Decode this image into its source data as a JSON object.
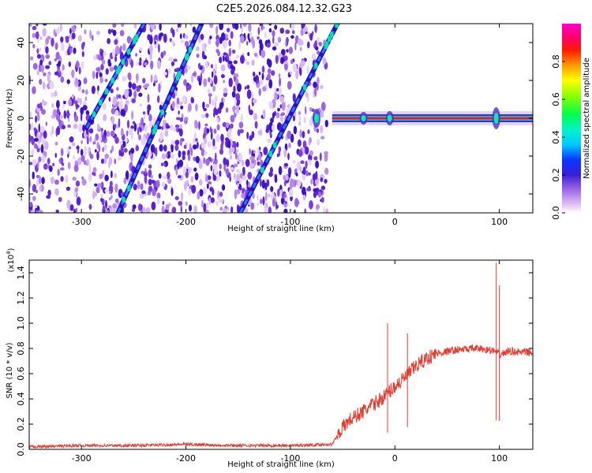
{
  "title": "C2E5.2026.084.12.32.G23",
  "chart_data": [
    {
      "type": "heatmap",
      "xlabel": "Height of straight line (km)",
      "ylabel": "Frequency (Hz)",
      "xlim": [
        -350,
        132
      ],
      "ylim": [
        -50,
        50
      ],
      "xticks": [
        -300,
        -200,
        -100,
        0,
        100
      ],
      "yticks": [
        -40,
        -20,
        0,
        20,
        40
      ],
      "colorbar": {
        "label": "Normalized spectral amplitude",
        "range": [
          0,
          1
        ],
        "ticks": [
          0.0,
          0.2,
          0.4,
          0.6,
          0.8
        ]
      },
      "features": {
        "noise_region_x": [
          -350,
          -65
        ],
        "carrier_region_x": [
          -60,
          132
        ],
        "carrier_frequency": 0,
        "tracks": [
          {
            "x": [
              -265,
              -185
            ],
            "y": [
              -50,
              50
            ]
          },
          {
            "x": [
              -295,
              -240
            ],
            "y": [
              -5,
              50
            ]
          },
          {
            "x": [
              -148,
              -55
            ],
            "y": [
              -50,
              50
            ]
          }
        ]
      }
    },
    {
      "type": "line",
      "xlabel": "Height of straight line (km)",
      "ylabel": "SNR (10 * v/v)",
      "yscale_label": "(x10",
      "yscale_exp": "4",
      "yscale_close": ")",
      "xlim": [
        -350,
        132
      ],
      "ylim": [
        0,
        1.5
      ],
      "xticks": [
        -300,
        -200,
        -100,
        0,
        100
      ],
      "yticks": [
        0.0,
        0.2,
        0.4,
        0.6,
        0.8,
        1.0,
        1.2,
        1.4
      ],
      "color": "#e03c31",
      "series": [
        {
          "x": [
            -350,
            -300,
            -250,
            -200,
            -150,
            -100,
            -60,
            -52,
            -45,
            -40,
            -30,
            -20,
            -10,
            0,
            10,
            20,
            30,
            40,
            60,
            80,
            95,
            100,
            110,
            120,
            132
          ],
          "y": [
            0.02,
            0.03,
            0.03,
            0.04,
            0.03,
            0.03,
            0.04,
            0.15,
            0.22,
            0.25,
            0.3,
            0.36,
            0.42,
            0.5,
            0.57,
            0.66,
            0.72,
            0.76,
            0.79,
            0.8,
            0.78,
            0.75,
            0.78,
            0.77,
            0.77
          ]
        }
      ],
      "spikes": [
        {
          "x": -7,
          "y": 1.0
        },
        {
          "x": 12,
          "y": 0.92
        },
        {
          "x": 97,
          "y": 1.48
        },
        {
          "x": 100,
          "y": 1.3
        }
      ]
    }
  ]
}
